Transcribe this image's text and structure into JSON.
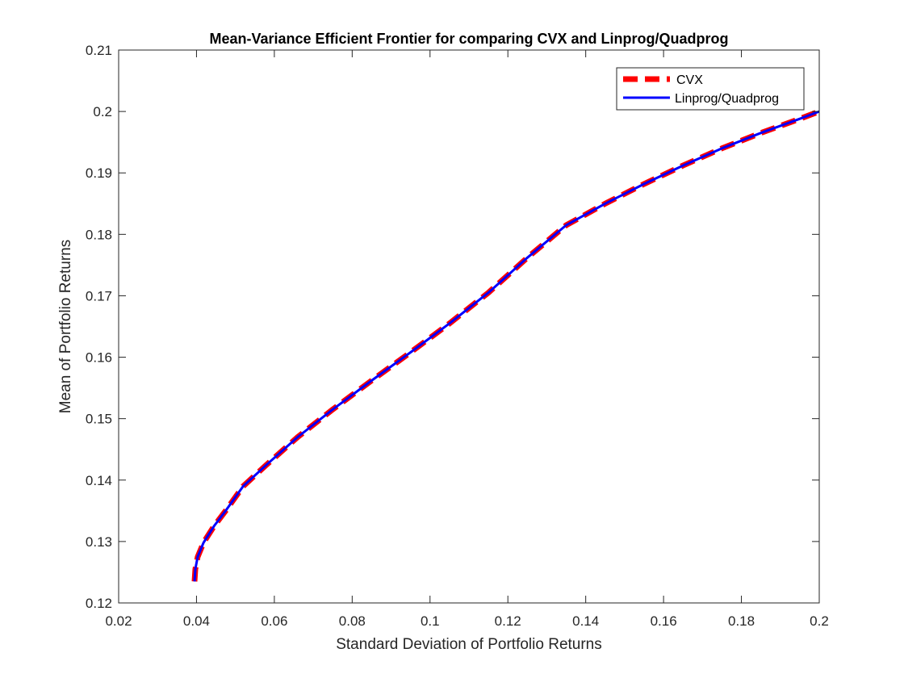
{
  "chart_data": {
    "type": "line",
    "title": "Mean-Variance Efficient Frontier for comparing CVX and Linprog/Quadprog",
    "xlabel": "Standard Deviation of Portfolio Returns",
    "ylabel": "Mean of Portfolio Returns",
    "xlim": [
      0.02,
      0.2
    ],
    "ylim": [
      0.12,
      0.21
    ],
    "xticks": [
      "0.02",
      "0.04",
      "0.06",
      "0.08",
      "0.1",
      "0.12",
      "0.14",
      "0.16",
      "0.18",
      "0.2"
    ],
    "yticks": [
      "0.12",
      "0.13",
      "0.14",
      "0.15",
      "0.16",
      "0.17",
      "0.18",
      "0.19",
      "0.2",
      "0.21"
    ],
    "grid": false,
    "legend_position": "top-right",
    "series": [
      {
        "name": "CVX",
        "color": "#ff0000",
        "style": "dashed",
        "x": [
          0.0395,
          0.0397,
          0.0403,
          0.0418,
          0.0445,
          0.0475,
          0.052,
          0.058,
          0.066,
          0.075,
          0.085,
          0.095,
          0.105,
          0.115,
          0.125,
          0.135,
          0.145,
          0.155,
          0.165,
          0.175,
          0.185,
          0.195,
          0.2
        ],
        "y": [
          0.1235,
          0.1255,
          0.1275,
          0.1298,
          0.1325,
          0.135,
          0.139,
          0.1425,
          0.147,
          0.1515,
          0.1562,
          0.1608,
          0.1655,
          0.1705,
          0.1762,
          0.1815,
          0.185,
          0.1882,
          0.1912,
          0.194,
          0.1965,
          0.1988,
          0.2
        ]
      },
      {
        "name": "Linprog/Quadprog",
        "color": "#0000ff",
        "style": "solid",
        "x": [
          0.0395,
          0.0397,
          0.0403,
          0.0418,
          0.0445,
          0.0475,
          0.052,
          0.058,
          0.066,
          0.075,
          0.085,
          0.095,
          0.105,
          0.115,
          0.125,
          0.135,
          0.145,
          0.155,
          0.165,
          0.175,
          0.185,
          0.195,
          0.2
        ],
        "y": [
          0.1235,
          0.1255,
          0.1275,
          0.1298,
          0.1325,
          0.135,
          0.139,
          0.1425,
          0.147,
          0.1515,
          0.1562,
          0.1608,
          0.1655,
          0.1705,
          0.1762,
          0.1815,
          0.185,
          0.1882,
          0.1912,
          0.194,
          0.1965,
          0.1988,
          0.2
        ]
      }
    ]
  }
}
